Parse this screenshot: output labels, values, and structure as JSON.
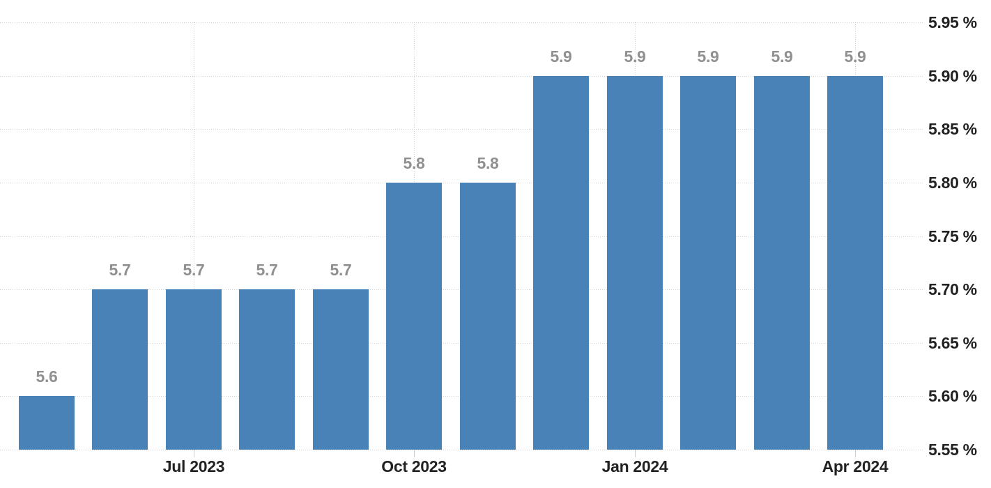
{
  "chart_data": {
    "type": "bar",
    "title": "",
    "values": [
      5.6,
      5.7,
      5.7,
      5.7,
      5.7,
      5.8,
      5.8,
      5.9,
      5.9,
      5.9,
      5.9,
      5.9
    ],
    "data_labels": [
      "5.6",
      "5.7",
      "5.7",
      "5.7",
      "5.7",
      "5.8",
      "5.8",
      "5.9",
      "5.9",
      "5.9",
      "5.9",
      "5.9"
    ],
    "x_ticks": [
      {
        "label": "Jul 2023",
        "bar_index": 2
      },
      {
        "label": "Oct 2023",
        "bar_index": 5
      },
      {
        "label": "Jan 2024",
        "bar_index": 8
      },
      {
        "label": "Apr 2024",
        "bar_index": 11
      }
    ],
    "y_ticks": [
      {
        "label": "5.95 %",
        "value": 5.95
      },
      {
        "label": "5.90 %",
        "value": 5.9
      },
      {
        "label": "5.85 %",
        "value": 5.85
      },
      {
        "label": "5.80 %",
        "value": 5.8
      },
      {
        "label": "5.75 %",
        "value": 5.75
      },
      {
        "label": "5.70 %",
        "value": 5.7
      },
      {
        "label": "5.65 %",
        "value": 5.65
      },
      {
        "label": "5.60 %",
        "value": 5.6
      },
      {
        "label": "5.55 %",
        "value": 5.55
      }
    ],
    "ylim": [
      5.55,
      5.95
    ],
    "xlabel": "",
    "ylabel": "",
    "grid": true,
    "grid_style": "dotted",
    "legend": false,
    "y_axis_side": "right"
  },
  "colors": {
    "background": "#ffffff",
    "bar": "#4882b6",
    "grid": "#cfcfcf",
    "tick": "#cccccc",
    "axis_label": "#222222",
    "data_label": "#909090"
  }
}
